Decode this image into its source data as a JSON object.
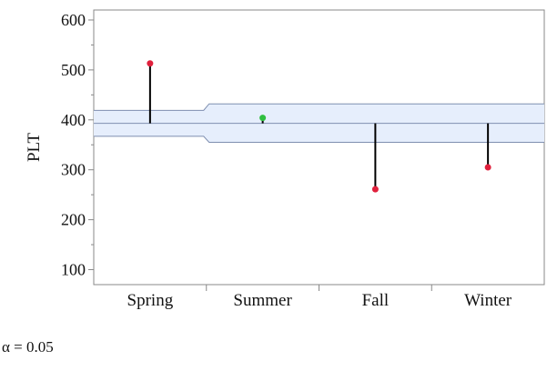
{
  "chart_data": {
    "type": "scatter",
    "subtype": "analysis-of-means-decision-chart",
    "title": "",
    "xlabel": "",
    "ylabel": "PLT",
    "ylim": [
      70,
      620
    ],
    "yticks": [
      100,
      200,
      300,
      400,
      500,
      600
    ],
    "grid": false,
    "legend": "none",
    "categories": [
      "Spring",
      "Summer",
      "Fall",
      "Winter"
    ],
    "center_line": 393,
    "upper_limits": [
      419,
      432,
      432,
      432
    ],
    "lower_limits": [
      367,
      355,
      355,
      355
    ],
    "values": [
      513,
      404,
      261,
      305
    ],
    "point_colors": [
      "#e0203c",
      "#2fbf40",
      "#e0203c",
      "#e0203c"
    ],
    "colors": {
      "band_fill": "#e6eefc",
      "band_edge": "#7f8fb0",
      "axis": "#888888",
      "stem": "#000000"
    }
  },
  "footnote": {
    "alpha_label": "α = 0.05"
  }
}
